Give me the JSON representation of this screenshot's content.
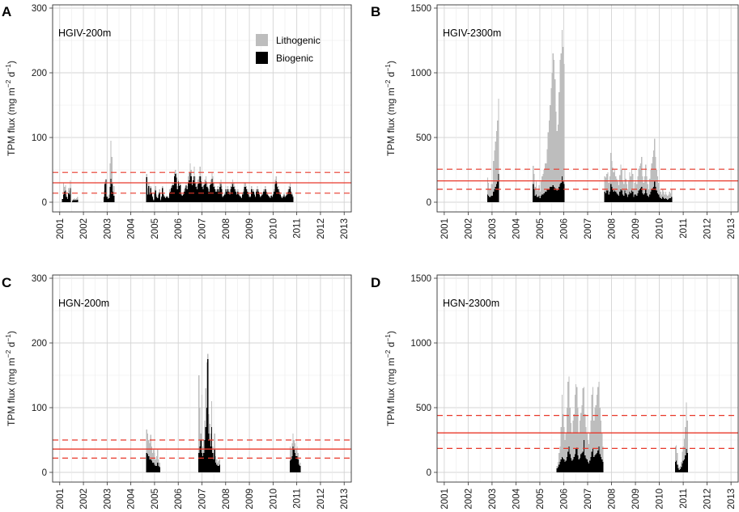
{
  "colors": {
    "lithogenic": "#bdbdbd",
    "biogenic": "#000000",
    "reference_line": "#e8382a"
  },
  "legend": {
    "lithogenic": "Lithogenic",
    "biogenic": "Biogenic"
  },
  "ylabel_parts": {
    "prefix": "TPM flux  (mg m",
    "exp1": "−2",
    "mid": " d",
    "exp2": "−1",
    "suffix": ")"
  },
  "chart_data": [
    {
      "panel": "A",
      "title": "HGIV-200m",
      "type": "bar",
      "stacked": true,
      "xlim": [
        2000.7,
        2013.3
      ],
      "ylim": [
        -15,
        305
      ],
      "yticks": [
        0,
        100,
        200,
        300
      ],
      "xticks": [
        "2001",
        "2002",
        "2003",
        "2004",
        "2005",
        "2006",
        "2007",
        "2008",
        "2009",
        "2010",
        "2011",
        "2012",
        "2013"
      ],
      "legend_position": "top-right",
      "mean": 30,
      "sd_lower": 14,
      "sd_upper": 46,
      "segments": [
        {
          "start": 2001.1,
          "step": 0.0417,
          "lithogenic": [
            0,
            30,
            24,
            26,
            12,
            8,
            22,
            18,
            34,
            0,
            4,
            5,
            6,
            5,
            6,
            8
          ],
          "biogenic": [
            5,
            12,
            16,
            18,
            8,
            5,
            14,
            12,
            22,
            0,
            2,
            3,
            3,
            3,
            3,
            4
          ]
        },
        {
          "start": 2002.85,
          "step": 0.0417,
          "lithogenic": [
            18,
            32,
            36,
            10,
            8,
            12,
            60,
            95,
            70,
            30,
            25
          ],
          "biogenic": [
            8,
            28,
            35,
            8,
            5,
            6,
            24,
            36,
            28,
            16,
            10
          ]
        },
        {
          "start": 2004.65,
          "step": 0.0417,
          "lithogenic": [
            44,
            22,
            30,
            15,
            25,
            15,
            10,
            5,
            20,
            25,
            12,
            8,
            15,
            20,
            5,
            10,
            25,
            15,
            10,
            8,
            10,
            10,
            8,
            20,
            20,
            25,
            30,
            30,
            45,
            50,
            45,
            25,
            35,
            30,
            30,
            15,
            12,
            15,
            20,
            25,
            30,
            25,
            40,
            45,
            60,
            50,
            30,
            40,
            55,
            40,
            30,
            25,
            35,
            40,
            55,
            40,
            30,
            25,
            30,
            35,
            40,
            30,
            25,
            20,
            30,
            35,
            45,
            40,
            30,
            25,
            20,
            20,
            25,
            20,
            30,
            35,
            25,
            10,
            12,
            15,
            25,
            20,
            25,
            20,
            15,
            25,
            30,
            35,
            30,
            25,
            20,
            15,
            20,
            15,
            12,
            10,
            8,
            15,
            20,
            30,
            30,
            25,
            20,
            15,
            10,
            10,
            25,
            20,
            20,
            15,
            10,
            20,
            25,
            20,
            15,
            10,
            12,
            15,
            20,
            20,
            25,
            20,
            15,
            12,
            10,
            8,
            12,
            10,
            15,
            20,
            35,
            40,
            30,
            25,
            20,
            15,
            10,
            8,
            10,
            15,
            10,
            12,
            15,
            20,
            25,
            30,
            20,
            15,
            10
          ],
          "biogenic": [
            39,
            12,
            25,
            12,
            22,
            14,
            8,
            3,
            15,
            18,
            8,
            6,
            12,
            15,
            3,
            8,
            22,
            12,
            8,
            6,
            8,
            8,
            6,
            15,
            16,
            22,
            26,
            26,
            40,
            44,
            38,
            20,
            32,
            25,
            26,
            12,
            10,
            12,
            16,
            22,
            26,
            20,
            30,
            34,
            46,
            40,
            26,
            34,
            40,
            30,
            24,
            20,
            28,
            30,
            40,
            32,
            24,
            20,
            26,
            28,
            32,
            24,
            22,
            16,
            26,
            28,
            36,
            30,
            24,
            20,
            16,
            16,
            20,
            16,
            24,
            28,
            20,
            8,
            10,
            12,
            20,
            16,
            20,
            16,
            12,
            20,
            24,
            28,
            24,
            20,
            16,
            12,
            16,
            12,
            10,
            8,
            6,
            12,
            16,
            24,
            24,
            20,
            16,
            12,
            8,
            8,
            20,
            16,
            16,
            12,
            8,
            16,
            20,
            16,
            12,
            8,
            10,
            12,
            16,
            16,
            20,
            16,
            12,
            10,
            8,
            6,
            10,
            8,
            12,
            16,
            28,
            32,
            24,
            20,
            16,
            12,
            8,
            6,
            8,
            12,
            8,
            10,
            12,
            16,
            20,
            24,
            16,
            12,
            8
          ]
        }
      ]
    },
    {
      "panel": "B",
      "title": "HGIV-2300m",
      "type": "bar",
      "stacked": true,
      "xlim": [
        2000.7,
        2013.3
      ],
      "ylim": [
        -75,
        1525
      ],
      "yticks": [
        0,
        500,
        1000,
        1500
      ],
      "xticks": [
        "2001",
        "2002",
        "2003",
        "2004",
        "2005",
        "2006",
        "2007",
        "2008",
        "2009",
        "2010",
        "2011",
        "2012",
        "2013"
      ],
      "legend_position": "none",
      "mean": 165,
      "sd_lower": 100,
      "sd_upper": 255,
      "segments": [
        {
          "start": 2002.75,
          "step": 0.0417,
          "lithogenic": [
            0,
            190,
            150,
            100,
            100,
            140,
            140,
            320,
            400,
            470,
            550,
            630,
            800
          ],
          "biogenic": [
            0,
            60,
            50,
            40,
            40,
            50,
            50,
            80,
            100,
            120,
            140,
            160,
            220
          ]
        },
        {
          "start": 2004.7,
          "step": 0.0417,
          "lithogenic": [
            280,
            220,
            120,
            160,
            90,
            100,
            130,
            80,
            160,
            200,
            220,
            250,
            300,
            300,
            410,
            540,
            630,
            750,
            880,
            1000,
            1150,
            1100,
            950,
            700,
            550,
            600,
            850,
            1100,
            1150,
            1330,
            1200,
            1070
          ],
          "biogenic": [
            140,
            100,
            50,
            60,
            40,
            40,
            50,
            30,
            50,
            60,
            60,
            70,
            80,
            80,
            100,
            100,
            100,
            120,
            120,
            120,
            130,
            120,
            110,
            100,
            90,
            100,
            120,
            140,
            150,
            200,
            160,
            140
          ]
        },
        {
          "start": 2007.7,
          "step": 0.0417,
          "lithogenic": [
            200,
            190,
            220,
            230,
            150,
            200,
            380,
            320,
            270,
            230,
            250,
            200,
            180,
            160,
            130,
            210,
            290,
            250,
            160,
            140,
            250,
            180,
            140,
            100,
            160,
            230,
            200,
            260,
            220,
            100,
            150,
            160,
            140,
            200,
            260,
            280,
            300,
            350,
            200,
            150,
            200,
            290,
            200,
            140,
            100,
            180,
            250,
            300,
            350,
            400,
            490,
            350,
            250,
            200,
            150,
            100,
            80,
            60,
            100,
            80,
            60,
            80,
            60,
            50,
            60,
            80,
            70,
            100
          ],
          "biogenic": [
            80,
            70,
            90,
            90,
            60,
            80,
            140,
            120,
            100,
            80,
            90,
            80,
            70,
            60,
            50,
            80,
            100,
            90,
            60,
            50,
            90,
            70,
            60,
            40,
            60,
            80,
            70,
            90,
            80,
            40,
            60,
            60,
            50,
            70,
            90,
            100,
            110,
            120,
            70,
            60,
            70,
            100,
            70,
            50,
            40,
            60,
            80,
            100,
            110,
            120,
            160,
            120,
            90,
            70,
            60,
            40,
            30,
            25,
            40,
            30,
            25,
            30,
            25,
            20,
            25,
            30,
            30,
            40
          ]
        }
      ]
    },
    {
      "panel": "C",
      "title": "HGN-200m",
      "type": "bar",
      "stacked": true,
      "xlim": [
        2000.7,
        2013.3
      ],
      "ylim": [
        -15,
        305
      ],
      "yticks": [
        0,
        100,
        200,
        300
      ],
      "xticks": [
        "2001",
        "2002",
        "2003",
        "2004",
        "2005",
        "2006",
        "2007",
        "2008",
        "2009",
        "2010",
        "2011",
        "2012",
        "2013"
      ],
      "legend_position": "none",
      "mean": 36,
      "sd_lower": 22,
      "sd_upper": 50,
      "segments": [
        {
          "start": 2004.65,
          "step": 0.0417,
          "lithogenic": [
            66,
            60,
            50,
            45,
            58,
            40,
            30,
            35,
            30,
            20,
            25,
            35,
            20,
            15
          ],
          "biogenic": [
            30,
            28,
            25,
            20,
            20,
            18,
            15,
            15,
            12,
            10,
            10,
            15,
            10,
            8
          ]
        },
        {
          "start": 2006.85,
          "step": 0.0417,
          "lithogenic": [
            150,
            100,
            60,
            120,
            40,
            50,
            80,
            130,
            170,
            183,
            90,
            75,
            60,
            110,
            40,
            30,
            60,
            25,
            20,
            15,
            18,
            20
          ],
          "biogenic": [
            30,
            40,
            50,
            30,
            25,
            30,
            50,
            70,
            100,
            175,
            60,
            50,
            40,
            70,
            30,
            20,
            35,
            15,
            12,
            10,
            10,
            12
          ]
        },
        {
          "start": 2010.7,
          "step": 0.0417,
          "lithogenic": [
            40,
            35,
            45,
            60,
            50,
            45,
            35,
            40,
            30,
            20,
            15
          ],
          "biogenic": [
            18,
            20,
            25,
            40,
            35,
            30,
            25,
            25,
            20,
            12,
            10
          ]
        }
      ]
    },
    {
      "panel": "D",
      "title": "HGN-2300m",
      "type": "bar",
      "stacked": true,
      "xlim": [
        2000.7,
        2013.3
      ],
      "ylim": [
        -75,
        1525
      ],
      "yticks": [
        0,
        500,
        1000,
        1500
      ],
      "xticks": [
        "2001",
        "2002",
        "2003",
        "2004",
        "2005",
        "2006",
        "2007",
        "2008",
        "2009",
        "2010",
        "2011",
        "2012",
        "2013"
      ],
      "legend_position": "none",
      "mean": 305,
      "sd_lower": 185,
      "sd_upper": 440,
      "segments": [
        {
          "start": 2005.7,
          "step": 0.0417,
          "lithogenic": [
            50,
            80,
            150,
            200,
            350,
            600,
            450,
            350,
            250,
            300,
            500,
            700,
            740,
            500,
            380,
            300,
            400,
            450,
            600,
            680,
            660,
            500,
            300,
            400,
            460,
            520,
            650,
            660,
            450,
            350,
            300,
            250,
            220,
            300,
            400,
            600,
            660,
            400,
            500,
            520,
            600,
            660,
            700,
            500,
            400,
            300,
            200
          ],
          "biogenic": [
            30,
            40,
            60,
            80,
            100,
            120,
            110,
            100,
            80,
            90,
            120,
            160,
            200,
            140,
            110,
            90,
            100,
            120,
            140,
            180,
            190,
            130,
            100,
            110,
            140,
            150,
            160,
            250,
            130,
            110,
            100,
            80,
            70,
            90,
            120,
            160,
            180,
            120,
            130,
            140,
            150,
            170,
            200,
            140,
            120,
            100,
            80
          ]
        },
        {
          "start": 2010.65,
          "step": 0.0417,
          "lithogenic": [
            200,
            210,
            150,
            60,
            40,
            50,
            80,
            160,
            200,
            260,
            350,
            540,
            400
          ],
          "biogenic": [
            80,
            90,
            60,
            30,
            20,
            25,
            40,
            70,
            90,
            100,
            130,
            180,
            150
          ]
        }
      ]
    }
  ]
}
